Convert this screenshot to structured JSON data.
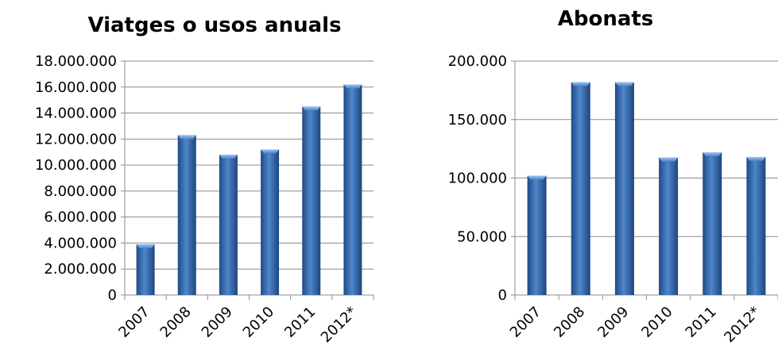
{
  "chart_data": [
    {
      "type": "bar",
      "title": "Viatges o usos anuals",
      "categories": [
        "2007",
        "2008",
        "2009",
        "2010",
        "2011",
        "2012*"
      ],
      "values": [
        3900000,
        12300000,
        10800000,
        11200000,
        14500000,
        16200000
      ],
      "ylim": [
        0,
        18000000
      ],
      "yticks": [
        "0",
        "2.000.000",
        "4.000.000",
        "6.000.000",
        "8.000.000",
        "10.000.000",
        "12.000.000",
        "14.000.000",
        "16.000.000",
        "18.000.000"
      ],
      "grid": true,
      "bar_color": "#2e5f9e"
    },
    {
      "type": "bar",
      "title": "Abonats",
      "categories": [
        "2007",
        "2008",
        "2009",
        "2010",
        "2011",
        "2012*"
      ],
      "values": [
        102000,
        182000,
        182000,
        117500,
        122000,
        118000
      ],
      "ylim": [
        0,
        200000
      ],
      "yticks": [
        "0",
        "50.000",
        "100.000",
        "150.000",
        "200.000"
      ],
      "grid": true,
      "bar_color": "#2e5f9e"
    }
  ]
}
